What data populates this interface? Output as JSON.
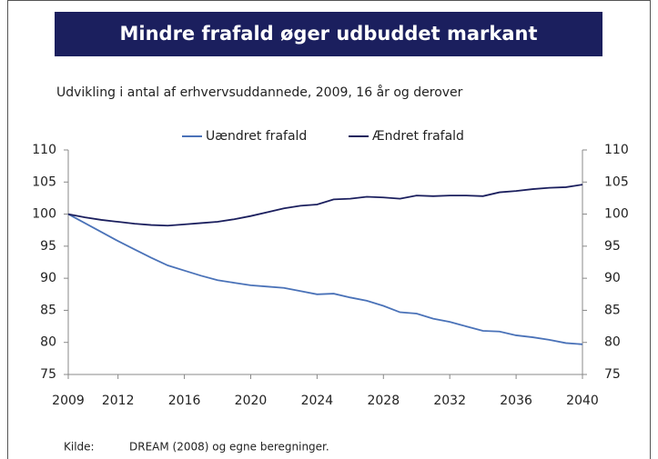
{
  "chart_data": {
    "type": "line",
    "title": "Mindre frafald øger udbuddet markant",
    "subtitle": "Udvikling i antal af erhvervsuddannede, 2009, 16 år og derover",
    "x": [
      2009,
      2010,
      2011,
      2012,
      2013,
      2014,
      2015,
      2016,
      2017,
      2018,
      2019,
      2020,
      2021,
      2022,
      2023,
      2024,
      2025,
      2026,
      2027,
      2028,
      2029,
      2030,
      2031,
      2032,
      2033,
      2034,
      2035,
      2036,
      2037,
      2038,
      2039,
      2040
    ],
    "series": [
      {
        "name": "Uændret frafald",
        "color": "#4a72b8",
        "values": [
          100,
          98.6,
          97.2,
          95.8,
          94.5,
          93.2,
          92.0,
          91.2,
          90.4,
          89.7,
          89.3,
          88.9,
          88.7,
          88.5,
          88.0,
          87.5,
          87.6,
          87.0,
          86.5,
          85.7,
          84.7,
          84.5,
          83.7,
          83.2,
          82.5,
          81.8,
          81.7,
          81.1,
          80.8,
          80.4,
          79.9,
          79.7
        ]
      },
      {
        "name": "Ændret frafald",
        "color": "#1b1f5e",
        "values": [
          100,
          99.5,
          99.1,
          98.8,
          98.5,
          98.3,
          98.2,
          98.4,
          98.6,
          98.8,
          99.2,
          99.7,
          100.3,
          100.9,
          101.3,
          101.5,
          102.3,
          102.4,
          102.7,
          102.6,
          102.4,
          102.9,
          102.8,
          102.9,
          102.9,
          102.8,
          103.4,
          103.6,
          103.9,
          104.1,
          104.2,
          104.6
        ]
      }
    ],
    "xlim": [
      2009,
      2040
    ],
    "xticks": [
      2009,
      2012,
      2016,
      2020,
      2024,
      2028,
      2032,
      2036,
      2040
    ],
    "ylim": [
      75,
      110
    ],
    "yticks": [
      75,
      80,
      85,
      90,
      95,
      100,
      105,
      110
    ],
    "y2lim": [
      75,
      110
    ],
    "y2ticks": [
      75,
      80,
      85,
      90,
      95,
      100,
      105,
      110
    ],
    "legend": "top",
    "source": {
      "label": "Kilde:",
      "text": "DREAM (2008) og egne beregninger."
    }
  }
}
